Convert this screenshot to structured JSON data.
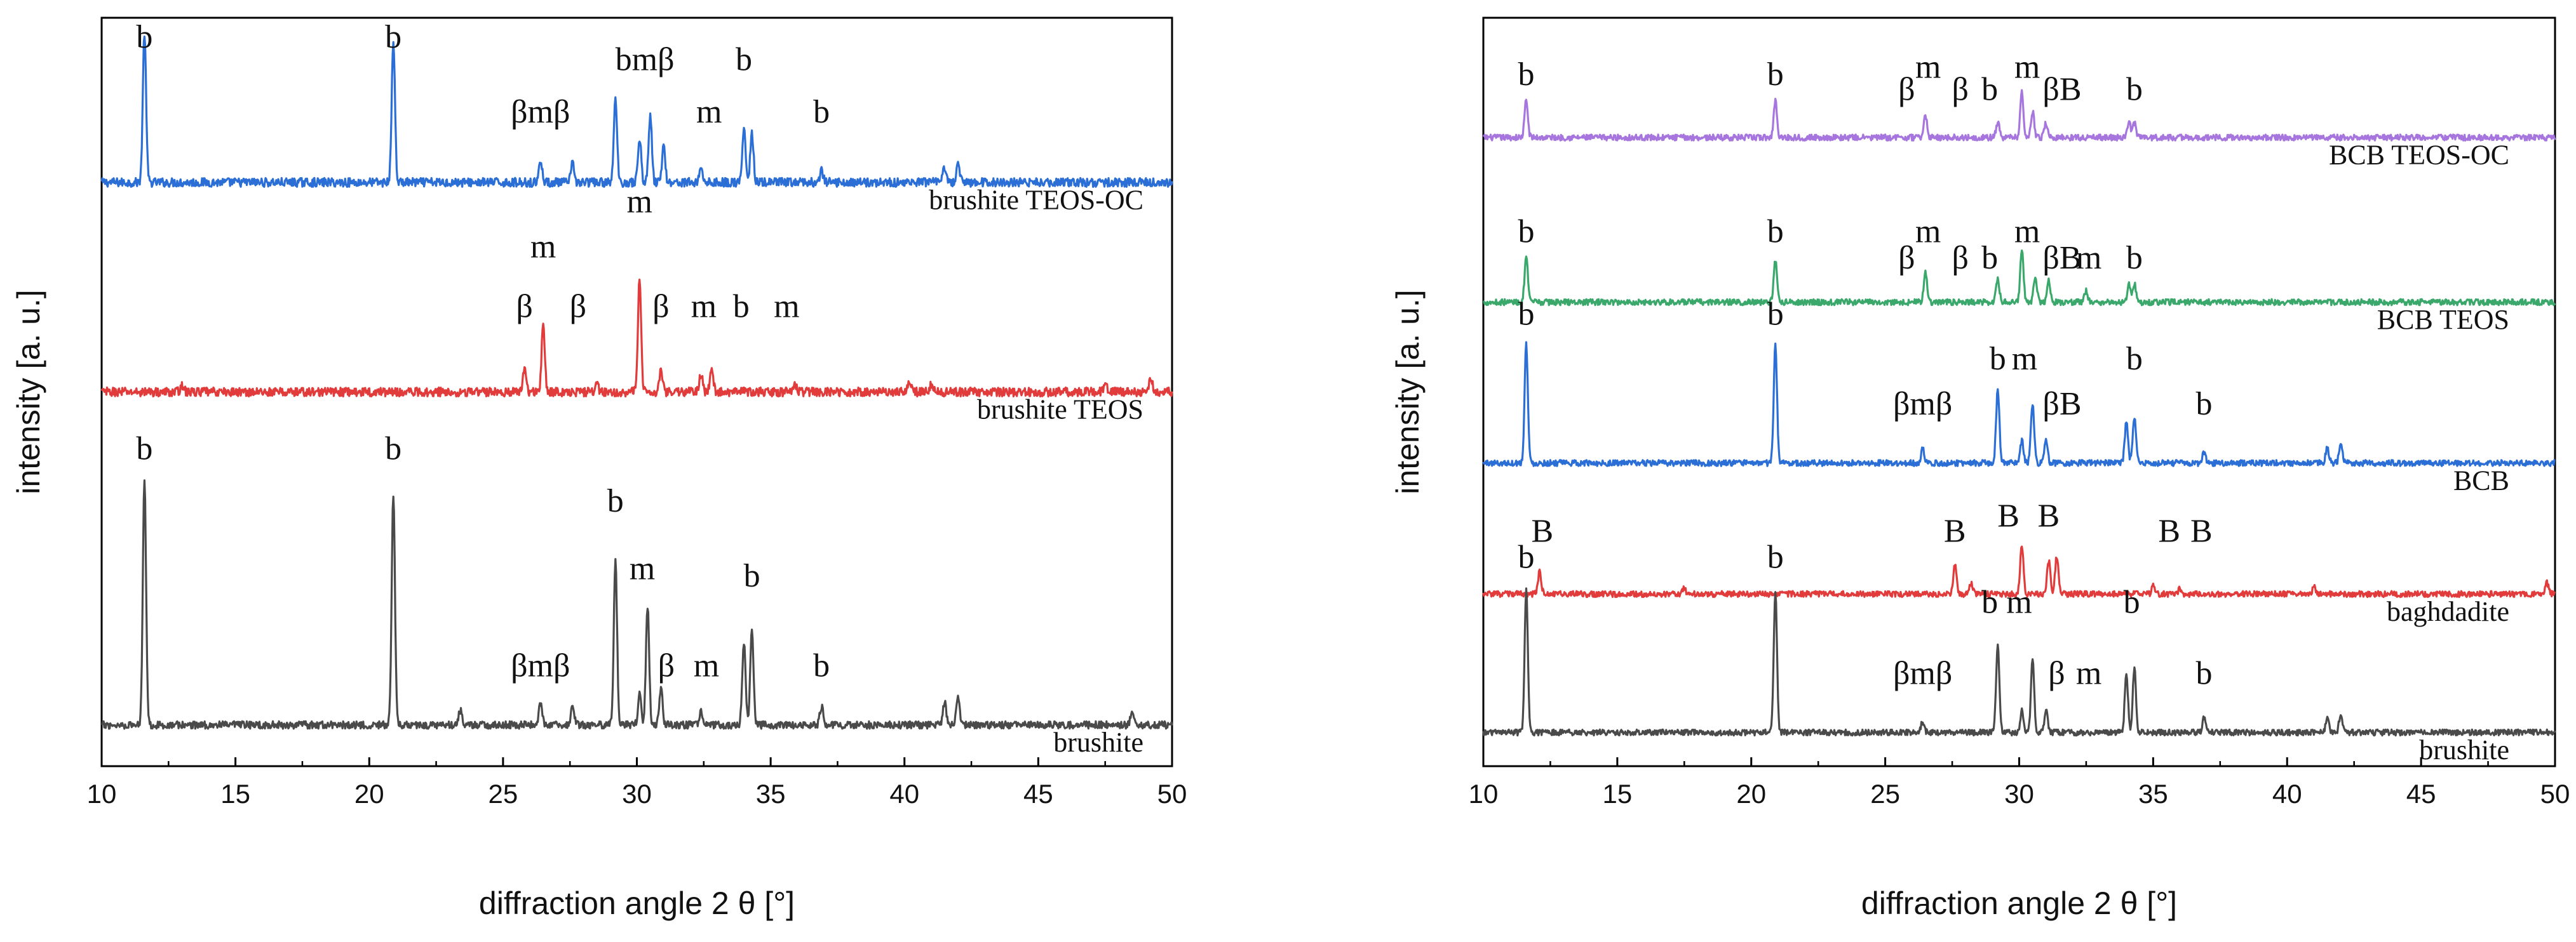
{
  "chart_data": [
    {
      "type": "line",
      "panel": "left",
      "xlabel": "diffraction angle 2 θ [°]",
      "ylabel": "intensity [a. u.]",
      "xlim": [
        10,
        50
      ],
      "xticks": [
        "10",
        "15",
        "20",
        "25",
        "30",
        "35",
        "40",
        "45",
        "50"
      ],
      "grid": false,
      "series": [
        {
          "name": "brushite TEOS-OC",
          "color": "#2b6fd6",
          "baseline": 0.78,
          "noise": 0.006,
          "peaks": [
            [
              11.6,
              0.2
            ],
            [
              20.9,
              0.19
            ],
            [
              26.4,
              0.03
            ],
            [
              27.6,
              0.025
            ],
            [
              29.2,
              0.11
            ],
            [
              30.1,
              0.06
            ],
            [
              30.5,
              0.09
            ],
            [
              31.0,
              0.05
            ],
            [
              32.4,
              0.02
            ],
            [
              34.0,
              0.07
            ],
            [
              34.3,
              0.065
            ],
            [
              36.9,
              0.015
            ],
            [
              41.5,
              0.02
            ],
            [
              42.0,
              0.025
            ]
          ],
          "annotations": [
            {
              "text": "b",
              "x": 11.6,
              "level": 0.96
            },
            {
              "text": "b",
              "x": 20.9,
              "level": 0.96
            },
            {
              "text": "βmβ",
              "x": 26.4,
              "level": 0.86
            },
            {
              "text": "bmβ",
              "x": 30.3,
              "level": 0.93
            },
            {
              "text": "m",
              "x": 32.7,
              "level": 0.86
            },
            {
              "text": "b",
              "x": 34.0,
              "level": 0.93
            },
            {
              "text": "b",
              "x": 36.9,
              "level": 0.86
            }
          ]
        },
        {
          "name": "brushite TEOS",
          "color": "#e23b3b",
          "baseline": 0.5,
          "noise": 0.006,
          "peaks": [
            [
              13.0,
              0.01
            ],
            [
              25.8,
              0.03
            ],
            [
              26.5,
              0.09
            ],
            [
              28.5,
              0.01
            ],
            [
              30.1,
              0.15
            ],
            [
              30.9,
              0.03
            ],
            [
              32.4,
              0.025
            ],
            [
              32.8,
              0.03
            ],
            [
              35.9,
              0.01
            ],
            [
              40.2,
              0.015
            ],
            [
              41.0,
              0.01
            ],
            [
              47.5,
              0.012
            ],
            [
              49.2,
              0.02
            ]
          ],
          "annotations": [
            {
              "text": "m",
              "x": 26.5,
              "level": 0.68
            },
            {
              "text": "β",
              "x": 25.8,
              "level": 0.6
            },
            {
              "text": "β",
              "x": 27.8,
              "level": 0.6
            },
            {
              "text": "m",
              "x": 30.1,
              "level": 0.74
            },
            {
              "text": "β",
              "x": 30.9,
              "level": 0.6
            },
            {
              "text": "m",
              "x": 32.5,
              "level": 0.6
            },
            {
              "text": "b",
              "x": 33.9,
              "level": 0.6
            },
            {
              "text": "m",
              "x": 35.6,
              "level": 0.6
            }
          ]
        },
        {
          "name": "brushite",
          "color": "#4a4a4a",
          "baseline": 0.055,
          "noise": 0.005,
          "peaks": [
            [
              11.6,
              0.33
            ],
            [
              20.9,
              0.31
            ],
            [
              23.4,
              0.02
            ],
            [
              26.4,
              0.03
            ],
            [
              27.6,
              0.025
            ],
            [
              29.2,
              0.22
            ],
            [
              30.1,
              0.04
            ],
            [
              30.4,
              0.16
            ],
            [
              30.9,
              0.05
            ],
            [
              32.4,
              0.02
            ],
            [
              34.0,
              0.11
            ],
            [
              34.3,
              0.13
            ],
            [
              36.9,
              0.025
            ],
            [
              41.5,
              0.03
            ],
            [
              42.0,
              0.04
            ],
            [
              48.5,
              0.015
            ]
          ],
          "annotations": [
            {
              "text": "b",
              "x": 11.6,
              "level": 0.41
            },
            {
              "text": "b",
              "x": 20.9,
              "level": 0.41
            },
            {
              "text": "b",
              "x": 29.2,
              "level": 0.34
            },
            {
              "text": "m",
              "x": 30.2,
              "level": 0.25
            },
            {
              "text": "βmβ",
              "x": 26.4,
              "level": 0.12
            },
            {
              "text": "β",
              "x": 31.1,
              "level": 0.12
            },
            {
              "text": "m",
              "x": 32.6,
              "level": 0.12
            },
            {
              "text": "b",
              "x": 34.3,
              "level": 0.24
            },
            {
              "text": "b",
              "x": 36.9,
              "level": 0.12
            }
          ]
        }
      ]
    },
    {
      "type": "line",
      "panel": "right",
      "xlabel": "diffraction angle 2 θ [°]",
      "ylabel": "intensity [a. u.]",
      "xlim": [
        10,
        50
      ],
      "xticks": [
        "10",
        "15",
        "20",
        "25",
        "30",
        "35",
        "40",
        "45",
        "50"
      ],
      "grid": false,
      "series": [
        {
          "name": "BCB TEOS-OC",
          "color": "#a775de",
          "baseline": 0.84,
          "noise": 0.004,
          "peaks": [
            [
              11.6,
              0.05
            ],
            [
              20.9,
              0.05
            ],
            [
              26.5,
              0.03
            ],
            [
              29.2,
              0.02
            ],
            [
              30.1,
              0.06
            ],
            [
              30.5,
              0.035
            ],
            [
              31.0,
              0.02
            ],
            [
              34.1,
              0.02
            ],
            [
              34.3,
              0.02
            ]
          ],
          "annotations": [
            {
              "text": "b",
              "x": 11.6,
              "level": 0.91
            },
            {
              "text": "b",
              "x": 20.9,
              "level": 0.91
            },
            {
              "text": "m",
              "x": 26.6,
              "level": 0.92
            },
            {
              "text": "β",
              "x": 25.8,
              "level": 0.89
            },
            {
              "text": "β",
              "x": 27.8,
              "level": 0.89
            },
            {
              "text": "b",
              "x": 28.9,
              "level": 0.89
            },
            {
              "text": "m",
              "x": 30.3,
              "level": 0.92
            },
            {
              "text": "βB",
              "x": 31.6,
              "level": 0.89
            },
            {
              "text": "b",
              "x": 34.3,
              "level": 0.89
            }
          ]
        },
        {
          "name": "BCB TEOS",
          "color": "#3aa86b",
          "baseline": 0.62,
          "noise": 0.004,
          "peaks": [
            [
              11.6,
              0.06
            ],
            [
              20.9,
              0.055
            ],
            [
              26.5,
              0.04
            ],
            [
              29.2,
              0.03
            ],
            [
              30.1,
              0.07
            ],
            [
              30.6,
              0.035
            ],
            [
              31.1,
              0.03
            ],
            [
              32.5,
              0.015
            ],
            [
              34.1,
              0.025
            ],
            [
              34.3,
              0.025
            ]
          ],
          "annotations": [
            {
              "text": "b",
              "x": 11.6,
              "level": 0.7
            },
            {
              "text": "b",
              "x": 20.9,
              "level": 0.7
            },
            {
              "text": "m",
              "x": 26.6,
              "level": 0.7
            },
            {
              "text": "β",
              "x": 25.8,
              "level": 0.665
            },
            {
              "text": "β",
              "x": 27.8,
              "level": 0.665
            },
            {
              "text": "b",
              "x": 28.9,
              "level": 0.665
            },
            {
              "text": "m",
              "x": 30.3,
              "level": 0.7
            },
            {
              "text": "βB",
              "x": 31.6,
              "level": 0.665
            },
            {
              "text": "m",
              "x": 32.6,
              "level": 0.665
            },
            {
              "text": "b",
              "x": 34.3,
              "level": 0.665
            }
          ]
        },
        {
          "name": "BCB",
          "color": "#2b6fd6",
          "baseline": 0.405,
          "noise": 0.004,
          "peaks": [
            [
              11.6,
              0.16
            ],
            [
              20.9,
              0.16
            ],
            [
              26.4,
              0.02
            ],
            [
              29.2,
              0.1
            ],
            [
              30.1,
              0.03
            ],
            [
              30.5,
              0.08
            ],
            [
              31.0,
              0.03
            ],
            [
              34.0,
              0.055
            ],
            [
              34.3,
              0.06
            ],
            [
              36.9,
              0.015
            ],
            [
              41.5,
              0.02
            ],
            [
              42.0,
              0.025
            ]
          ],
          "annotations": [
            {
              "text": "b",
              "x": 11.6,
              "level": 0.59
            },
            {
              "text": "b",
              "x": 20.9,
              "level": 0.59
            },
            {
              "text": "βmβ",
              "x": 26.4,
              "level": 0.47
            },
            {
              "text": "b",
              "x": 29.2,
              "level": 0.53
            },
            {
              "text": "m",
              "x": 30.2,
              "level": 0.53
            },
            {
              "text": "βB",
              "x": 31.6,
              "level": 0.47
            },
            {
              "text": "b",
              "x": 34.3,
              "level": 0.53
            },
            {
              "text": "b",
              "x": 36.9,
              "level": 0.47
            }
          ]
        },
        {
          "name": "baghdadite",
          "color": "#e23b3b",
          "baseline": 0.23,
          "noise": 0.004,
          "peaks": [
            [
              12.1,
              0.03
            ],
            [
              17.5,
              0.008
            ],
            [
              27.6,
              0.04
            ],
            [
              28.2,
              0.015
            ],
            [
              30.1,
              0.065
            ],
            [
              31.1,
              0.045
            ],
            [
              31.4,
              0.05
            ],
            [
              35.0,
              0.01
            ],
            [
              36.0,
              0.008
            ],
            [
              41.0,
              0.01
            ],
            [
              49.7,
              0.015
            ]
          ],
          "annotations": [
            {
              "text": "B",
              "x": 12.2,
              "level": 0.3
            },
            {
              "text": "B",
              "x": 27.6,
              "level": 0.3
            },
            {
              "text": "B",
              "x": 29.6,
              "level": 0.32
            },
            {
              "text": "B",
              "x": 31.1,
              "level": 0.32
            },
            {
              "text": "B",
              "x": 35.6,
              "level": 0.3
            },
            {
              "text": "B",
              "x": 36.8,
              "level": 0.3
            }
          ]
        },
        {
          "name": "brushite",
          "color": "#4a4a4a",
          "baseline": 0.045,
          "noise": 0.004,
          "peaks": [
            [
              11.6,
              0.19
            ],
            [
              20.9,
              0.19
            ],
            [
              26.4,
              0.015
            ],
            [
              29.2,
              0.12
            ],
            [
              30.1,
              0.03
            ],
            [
              30.5,
              0.1
            ],
            [
              31.0,
              0.03
            ],
            [
              34.0,
              0.075
            ],
            [
              34.3,
              0.085
            ],
            [
              36.9,
              0.02
            ],
            [
              41.5,
              0.02
            ],
            [
              42.0,
              0.025
            ]
          ],
          "annotations": [
            {
              "text": "b",
              "x": 11.6,
              "level": 0.265
            },
            {
              "text": "b",
              "x": 20.9,
              "level": 0.265
            },
            {
              "text": "βmβ",
              "x": 26.4,
              "level": 0.11
            },
            {
              "text": "b",
              "x": 28.9,
              "level": 0.205
            },
            {
              "text": "m",
              "x": 30.0,
              "level": 0.205
            },
            {
              "text": "β",
              "x": 31.4,
              "level": 0.11
            },
            {
              "text": "m",
              "x": 32.6,
              "level": 0.11
            },
            {
              "text": "b",
              "x": 34.2,
              "level": 0.205
            },
            {
              "text": "b",
              "x": 36.9,
              "level": 0.11
            }
          ]
        }
      ]
    }
  ]
}
